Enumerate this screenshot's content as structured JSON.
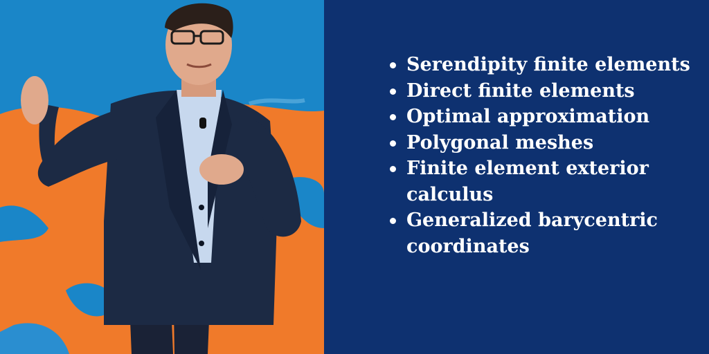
{
  "photo": {
    "subject_icon": "presenter-photo",
    "colors": {
      "backdrop_blue": "#1a86c8",
      "backdrop_orange": "#f07a2a",
      "suit": "#1c2a44",
      "shirt": "#c7d8ee",
      "skin": "#e0a98c"
    }
  },
  "panel": {
    "background": "#0e3170",
    "text_color": "#ffffff",
    "bullets": [
      "Serendipity finite elements",
      "Direct finite elements",
      "Optimal approximation",
      "Polygonal meshes",
      "Finite element exterior calculus",
      "Generalized barycentric coordinates"
    ]
  }
}
